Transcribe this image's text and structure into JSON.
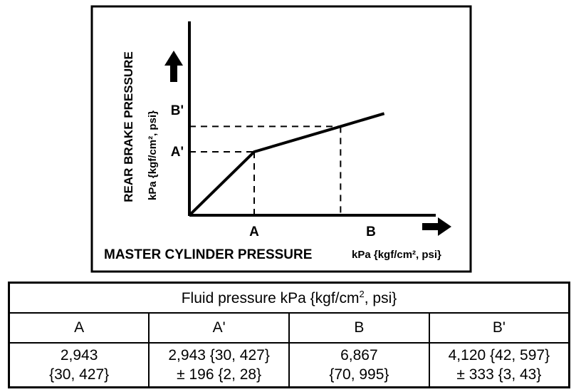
{
  "chart_data": {
    "type": "line",
    "ylabel": "REAR BRAKE PRESSURE",
    "ylabel_unit": "kPa  {kgf/cm², psi}",
    "xlabel": "MASTER CYLINDER PRESSURE",
    "xlabel_unit": "kPa  {kgf/cm², psi}",
    "x_points": [
      "A",
      "B"
    ],
    "y_points": [
      "A'",
      "B'"
    ],
    "series": [
      {
        "x": [
          0,
          2943,
          6867,
          8850
        ],
        "y": [
          0,
          2943,
          4120,
          4720
        ]
      }
    ]
  },
  "table": {
    "title_prefix": "Fluid pressure kPa  {kgf/cm",
    "title_sup": "2",
    "title_suffix": ", psi}",
    "headers": [
      "A",
      "A'",
      "B",
      "B'"
    ],
    "values": [
      {
        "line1": "2,943",
        "line2": "{30, 427}"
      },
      {
        "line1": "2,943 {30, 427}",
        "line2": "± 196 {2, 28}"
      },
      {
        "line1": "6,867",
        "line2": "{70, 995}"
      },
      {
        "line1": "4,120 {42, 597}",
        "line2": "± 333 {3, 43}"
      }
    ]
  }
}
